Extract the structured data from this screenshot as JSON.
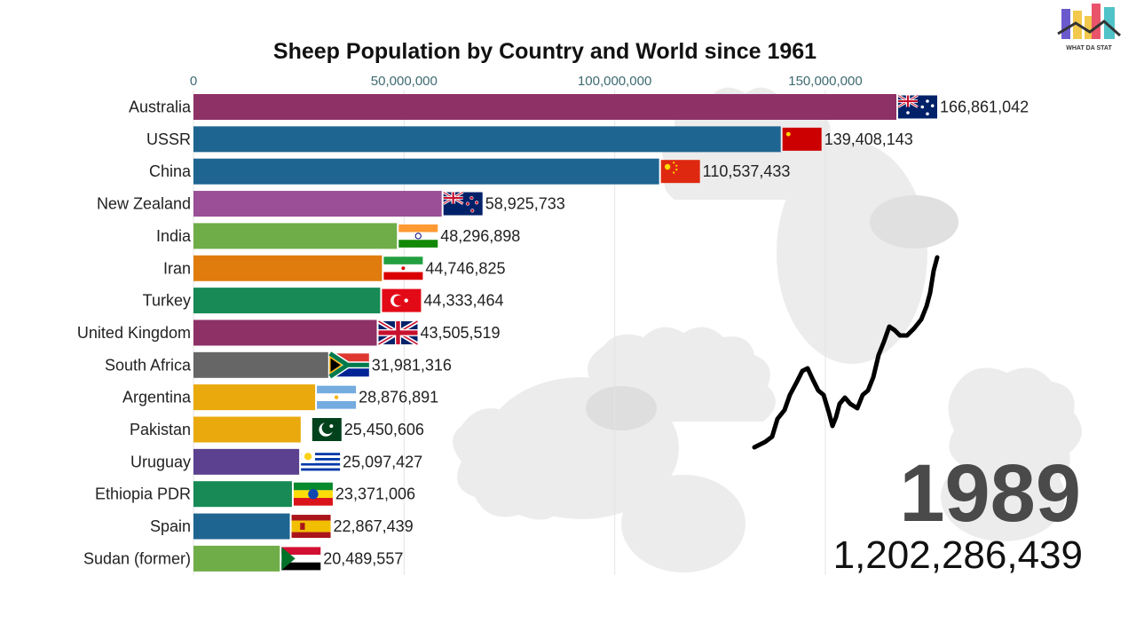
{
  "chart_data": {
    "type": "bar",
    "orientation": "horizontal",
    "title": "Sheep Population by Country and World since 1961",
    "xlim": [
      0,
      170000000
    ],
    "ticks": [
      {
        "value": 0,
        "label": "0"
      },
      {
        "value": 50000000,
        "label": "50,000,000"
      },
      {
        "value": 100000000,
        "label": "100,000,000"
      },
      {
        "value": 150000000,
        "label": "150,000,000"
      }
    ],
    "grid": true,
    "series": [
      {
        "category": "Australia",
        "value": 166861042,
        "label": "166,861,042",
        "color": "#8e3167",
        "flag": "australia"
      },
      {
        "category": "USSR",
        "value": 139408143,
        "label": "139,408,143",
        "color": "#1f6591",
        "flag": "ussr"
      },
      {
        "category": "China",
        "value": 110537433,
        "label": "110,537,433",
        "color": "#1f6591",
        "flag": "china"
      },
      {
        "category": "New Zealand",
        "value": 58925733,
        "label": "58,925,733",
        "color": "#9b4f97",
        "flag": "new-zealand"
      },
      {
        "category": "India",
        "value": 48296898,
        "label": "48,296,898",
        "color": "#6fad48",
        "flag": "india"
      },
      {
        "category": "Iran",
        "value": 44746825,
        "label": "44,746,825",
        "color": "#e07b0d",
        "flag": "iran"
      },
      {
        "category": "Turkey",
        "value": 44333464,
        "label": "44,333,464",
        "color": "#178a55",
        "flag": "turkey"
      },
      {
        "category": "United Kingdom",
        "value": 43505519,
        "label": "43,505,519",
        "color": "#8e3167",
        "flag": "united-kingdom"
      },
      {
        "category": "South Africa",
        "value": 31981316,
        "label": "31,981,316",
        "color": "#666666",
        "flag": "south-africa"
      },
      {
        "category": "Argentina",
        "value": 28876891,
        "label": "28,876,891",
        "color": "#eaa90c",
        "flag": "argentina"
      },
      {
        "category": "Pakistan",
        "value": 25450606,
        "label": "25,450,606",
        "color": "#eaa90c",
        "flag": "pakistan"
      },
      {
        "category": "Uruguay",
        "value": 25097427,
        "label": "25,097,427",
        "color": "#5b4190",
        "flag": "uruguay"
      },
      {
        "category": "Ethiopia PDR",
        "value": 23371006,
        "label": "23,371,006",
        "color": "#178a55",
        "flag": "ethiopia"
      },
      {
        "category": "Spain",
        "value": 22867439,
        "label": "22,867,439",
        "color": "#1f6591",
        "flag": "spain"
      },
      {
        "category": "Sudan (former)",
        "value": 20489557,
        "label": "20,489,557",
        "color": "#6fad48",
        "flag": "sudan"
      }
    ],
    "year": "1989",
    "total": "1,202,286,439"
  },
  "logo": {
    "text": "WHAT DA STAT",
    "colors": [
      "#6a5acd",
      "#f2c94c",
      "#e9546b",
      "#4fc3c8"
    ]
  },
  "colors": {
    "background_art": "#ececec",
    "trend_line": "#000000"
  }
}
